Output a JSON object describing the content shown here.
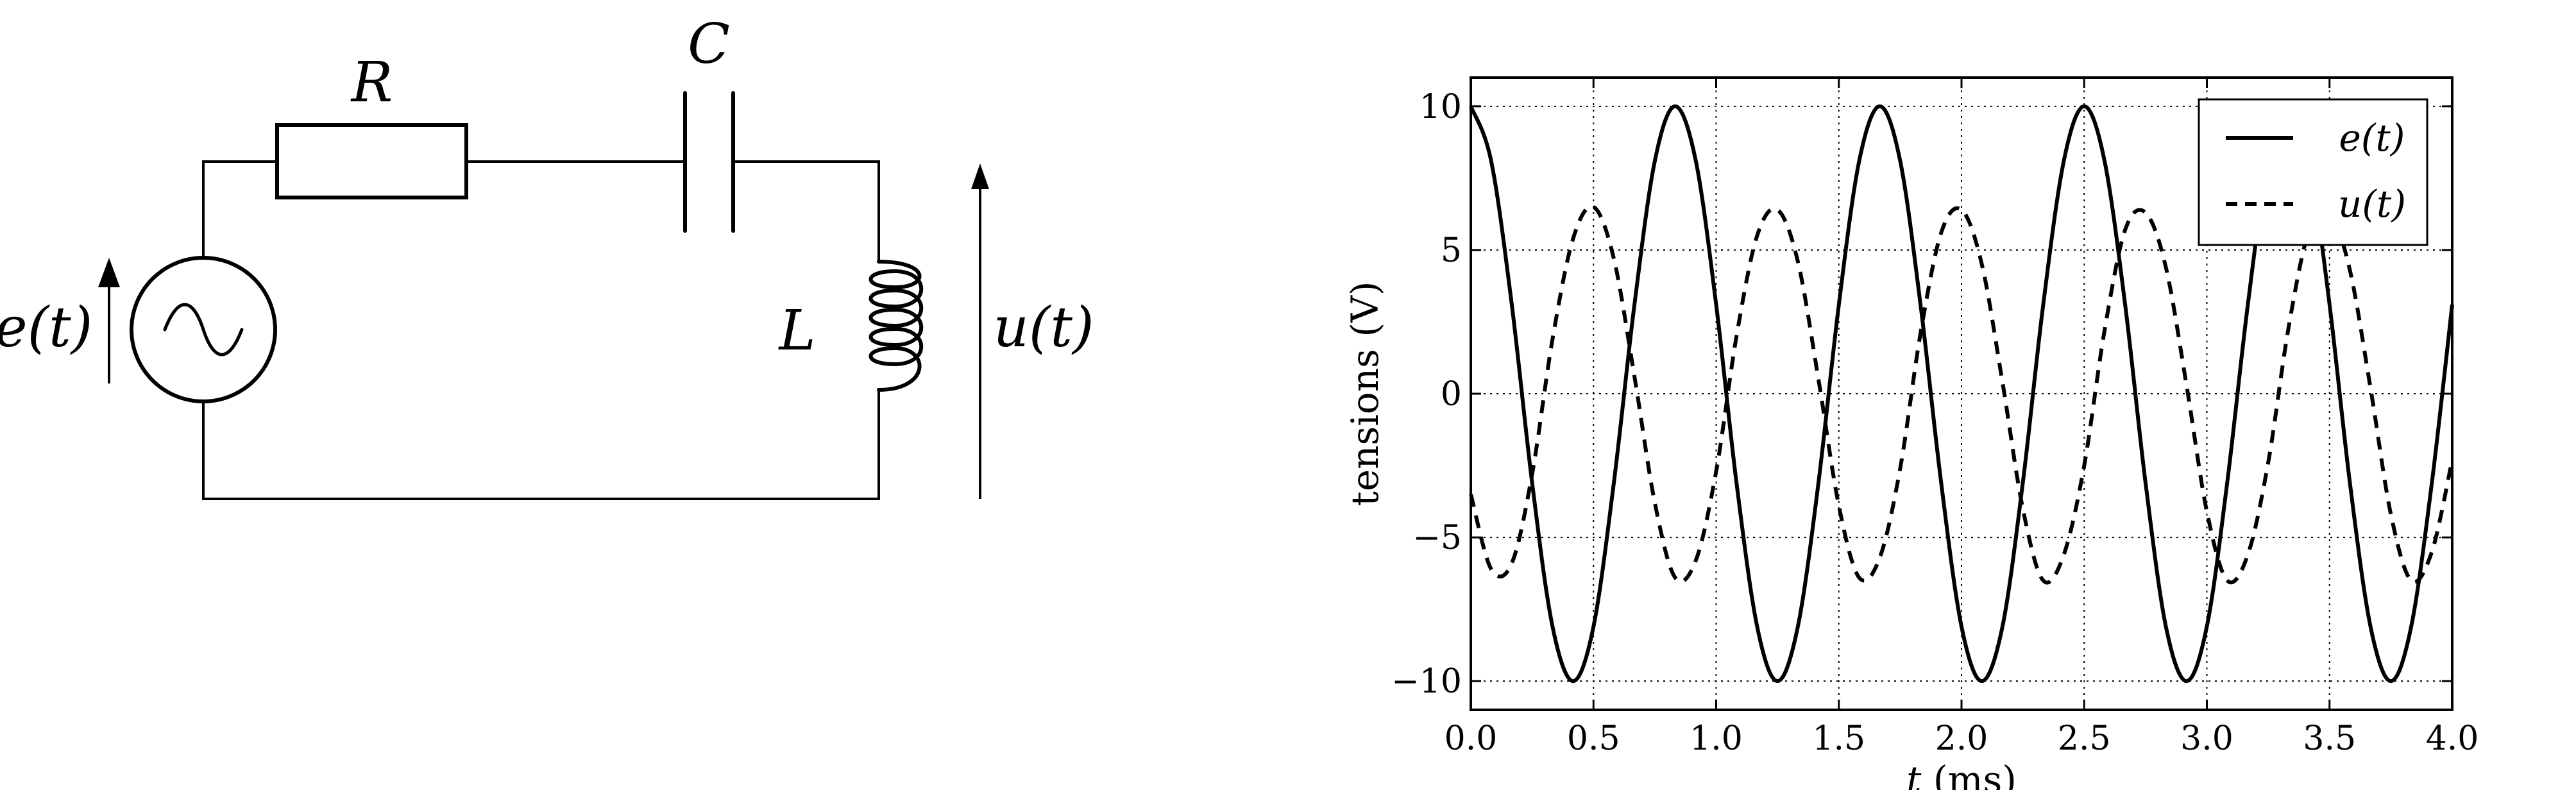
{
  "circuit": {
    "resistor_label": "R",
    "capacitor_label": "C",
    "inductor_label": "L",
    "source_voltage_label": "e(t)",
    "output_voltage_label": "u(t)",
    "source_icon": "ac-source-icon"
  },
  "chart_data": {
    "type": "line",
    "xlabel": "t (ms)",
    "ylabel": "tensions (V)",
    "xlim": [
      0.0,
      4.0
    ],
    "ylim": [
      -11,
      11
    ],
    "x_ticks": [
      0.0,
      0.5,
      1.0,
      1.5,
      2.0,
      2.5,
      3.0,
      3.5,
      4.0
    ],
    "x_tick_labels": [
      "0.0",
      "0.5",
      "1.0",
      "1.5",
      "2.0",
      "2.5",
      "3.0",
      "3.5",
      "4.0"
    ],
    "y_ticks": [
      10,
      5,
      0,
      -5,
      -10
    ],
    "y_tick_labels": [
      "10",
      "5",
      "0",
      "−5",
      "−10"
    ],
    "grid": true,
    "legend_position": "top-right",
    "series": [
      {
        "name": "e(t)",
        "style": "solid",
        "color": "#000000",
        "x": [
          0.0,
          0.083,
          0.167,
          0.25,
          0.333,
          0.417,
          0.5,
          0.583,
          0.667,
          0.75,
          0.833,
          0.917,
          1.0,
          1.083,
          1.167,
          1.25,
          1.333,
          1.417,
          1.5,
          1.583,
          1.667,
          1.75,
          1.833,
          1.917,
          2.0,
          2.083,
          2.167,
          2.25,
          2.333,
          2.417,
          2.5,
          2.583,
          2.667,
          2.75,
          2.833,
          2.917,
          3.0,
          3.083,
          3.167,
          3.25,
          3.333,
          3.417,
          3.5,
          3.583,
          3.667,
          3.75,
          3.833,
          3.917,
          4.0
        ],
        "y": [
          10.0,
          8.1,
          3.1,
          -3.1,
          -8.1,
          -10.0,
          -8.1,
          -3.1,
          3.1,
          8.1,
          10.0,
          8.1,
          3.1,
          -3.1,
          -8.1,
          -10.0,
          -8.1,
          -3.1,
          3.1,
          8.1,
          10.0,
          8.1,
          3.1,
          -3.1,
          -8.1,
          -10.0,
          -8.1,
          -3.1,
          3.1,
          8.1,
          10.0,
          8.1,
          3.1,
          -3.1,
          -8.1,
          -10.0,
          -8.1,
          -3.1,
          3.1,
          8.1,
          10.0,
          8.1,
          3.1,
          -3.1,
          -8.1,
          -10.0,
          -8.1,
          -3.1,
          3.1
        ]
      },
      {
        "name": "u(t)",
        "style": "dashed",
        "color": "#000000",
        "x": [
          0.0,
          0.083,
          0.167,
          0.25,
          0.333,
          0.417,
          0.5,
          0.583,
          0.667,
          0.75,
          0.833,
          0.917,
          1.0,
          1.083,
          1.167,
          1.25,
          1.333,
          1.417,
          1.5,
          1.583,
          1.667,
          1.75,
          1.833,
          1.917,
          2.0,
          2.083,
          2.167,
          2.25,
          2.333,
          2.417,
          2.5,
          2.583,
          2.667,
          2.75,
          2.833,
          2.917,
          3.0,
          3.083,
          3.167,
          3.25,
          3.333,
          3.417,
          3.5,
          3.583,
          3.667,
          3.75,
          3.833,
          3.917,
          4.0
        ],
        "y": [
          -3.5,
          -6.1,
          -5.9,
          -2.8,
          1.9,
          5.4,
          6.5,
          4.7,
          0.6,
          -3.8,
          -6.4,
          -5.8,
          -2.7,
          2.0,
          5.5,
          6.4,
          4.6,
          0.5,
          -3.9,
          -6.4,
          -5.7,
          -2.6,
          2.1,
          5.6,
          6.4,
          4.5,
          0.4,
          -4.0,
          -6.5,
          -5.6,
          -2.5,
          2.2,
          5.7,
          6.3,
          4.4,
          0.3,
          -4.1,
          -6.5,
          -5.6,
          -2.4,
          2.3,
          5.7,
          6.3,
          4.3,
          0.2,
          -4.2,
          -6.5,
          -5.5,
          -2.3
        ]
      }
    ]
  }
}
